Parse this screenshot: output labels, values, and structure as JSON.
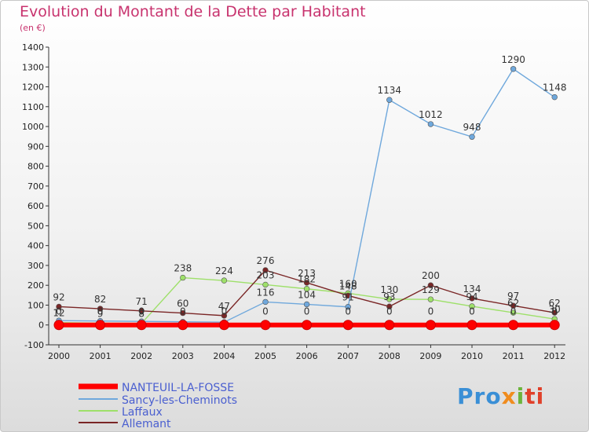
{
  "chart_data": {
    "type": "line",
    "title": "Evolution du Montant de la Dette par Habitant",
    "subtitle": "(en €)",
    "x": [
      "2000",
      "2001",
      "2002",
      "2003",
      "2004",
      "2005",
      "2006",
      "2007",
      "2008",
      "2009",
      "2010",
      "2011",
      "2012"
    ],
    "ylim": [
      -100,
      1400
    ],
    "yticks": [
      -100,
      0,
      100,
      200,
      300,
      400,
      500,
      600,
      700,
      800,
      900,
      1000,
      1100,
      1200,
      1300,
      1400
    ],
    "grid": false,
    "legend_position": "bottom-left",
    "series": [
      {
        "name": "NANTEUIL-LA-FOSSE",
        "color": "#ff0000",
        "values": [
          0,
          0,
          0,
          0,
          0,
          0,
          0,
          0,
          0,
          0,
          0,
          0,
          0
        ]
      },
      {
        "name": "Sancy-les-Cheminots",
        "color": "#6fa8dc",
        "values": [
          22,
          20,
          18,
          16,
          14,
          116,
          104,
          91,
          1134,
          1012,
          948,
          1290,
          1148
        ]
      },
      {
        "name": "Laffaux",
        "color": "#9ee06a",
        "values": [
          12,
          9,
          8,
          238,
          224,
          203,
          182,
          160,
          130,
          129,
          94,
          62,
          30
        ]
      },
      {
        "name": "Allemant",
        "color": "#7a2626",
        "values": [
          92,
          82,
          71,
          60,
          47,
          276,
          213,
          148,
          93,
          200,
          134,
          97,
          62
        ]
      }
    ],
    "data_labels": {
      "NANTEUIL-LA-FOSSE": [
        "0",
        "0",
        "0",
        "0",
        "0",
        "0",
        "0",
        "0",
        "0",
        "0",
        "0",
        "0",
        "0"
      ],
      "Sancy-les-Cheminots": [
        "",
        "",
        "",
        "",
        "",
        "116",
        "104",
        "91",
        "1134",
        "1012",
        "948",
        "1290",
        "1148"
      ],
      "Laffaux": [
        "12",
        "9",
        "8",
        "238",
        "224",
        "203",
        "182",
        "160",
        "130",
        "129",
        "94",
        "62",
        "30"
      ],
      "Allemant": [
        "92",
        "82",
        "71",
        "60",
        "47",
        "276",
        "213",
        "148",
        "93",
        "200",
        "134",
        "97",
        "62"
      ]
    }
  },
  "logo_text": [
    "Pro",
    "x",
    "i",
    "ti"
  ]
}
